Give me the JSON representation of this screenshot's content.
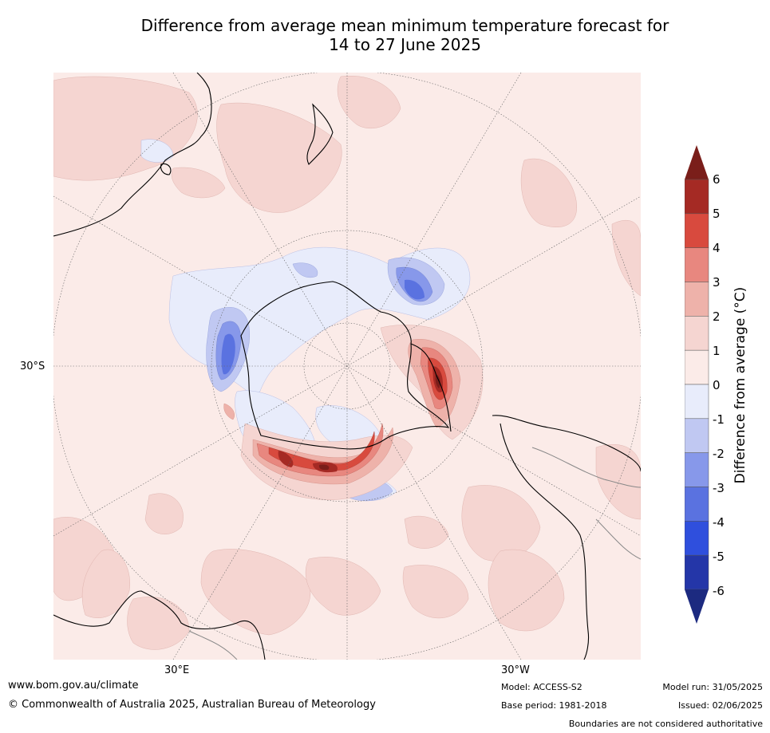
{
  "title": {
    "line1": "Difference from average mean minimum temperature forecast for",
    "line2": "14 to 27 June 2025"
  },
  "map": {
    "lat_labels": [
      "30°S"
    ],
    "lon_labels": [
      "30°E",
      "30°W"
    ],
    "projection": "south polar stereographic",
    "colors": {
      "ocean_background": "#fbebe8",
      "land_outline": "#000000",
      "border_outline": "#888888"
    }
  },
  "colorbar": {
    "label": "Difference from average (°C)",
    "ticks": [
      "6",
      "5",
      "4",
      "3",
      "2",
      "1",
      "0",
      "-1",
      "-2",
      "-3",
      "-4",
      "-5",
      "-6"
    ],
    "bands": [
      {
        "range": "above 6",
        "color": "#7a1e1a"
      },
      {
        "range": "5 to 6",
        "color": "#a52a24"
      },
      {
        "range": "4 to 5",
        "color": "#d84a3e"
      },
      {
        "range": "3 to 4",
        "color": "#e8877f"
      },
      {
        "range": "2 to 3",
        "color": "#eeb2aa"
      },
      {
        "range": "1 to 2",
        "color": "#f5d5d1"
      },
      {
        "range": "0 to 1",
        "color": "#fbebe8"
      },
      {
        "range": "-1 to 0",
        "color": "#e8ecfb"
      },
      {
        "range": "-2 to -1",
        "color": "#c0c8f2"
      },
      {
        "range": "-3 to -2",
        "color": "#8798ea"
      },
      {
        "range": "-4 to -3",
        "color": "#5a72e0"
      },
      {
        "range": "-5 to -4",
        "color": "#2f4fdd"
      },
      {
        "range": "-6 to -5",
        "color": "#2436a8"
      },
      {
        "range": "below -6",
        "color": "#1c2a80"
      }
    ]
  },
  "footer": {
    "url": "www.bom.gov.au/climate",
    "copyright": "© Commonwealth of Australia 2025, Australian Bureau of Meteorology",
    "model": "Model: ACCESS-S2",
    "base_period": "Base period: 1981-2018",
    "model_run": "Model run: 31/05/2025",
    "issued": "Issued: 02/06/2025",
    "disclaimer": "Boundaries are not considered authoritative"
  }
}
